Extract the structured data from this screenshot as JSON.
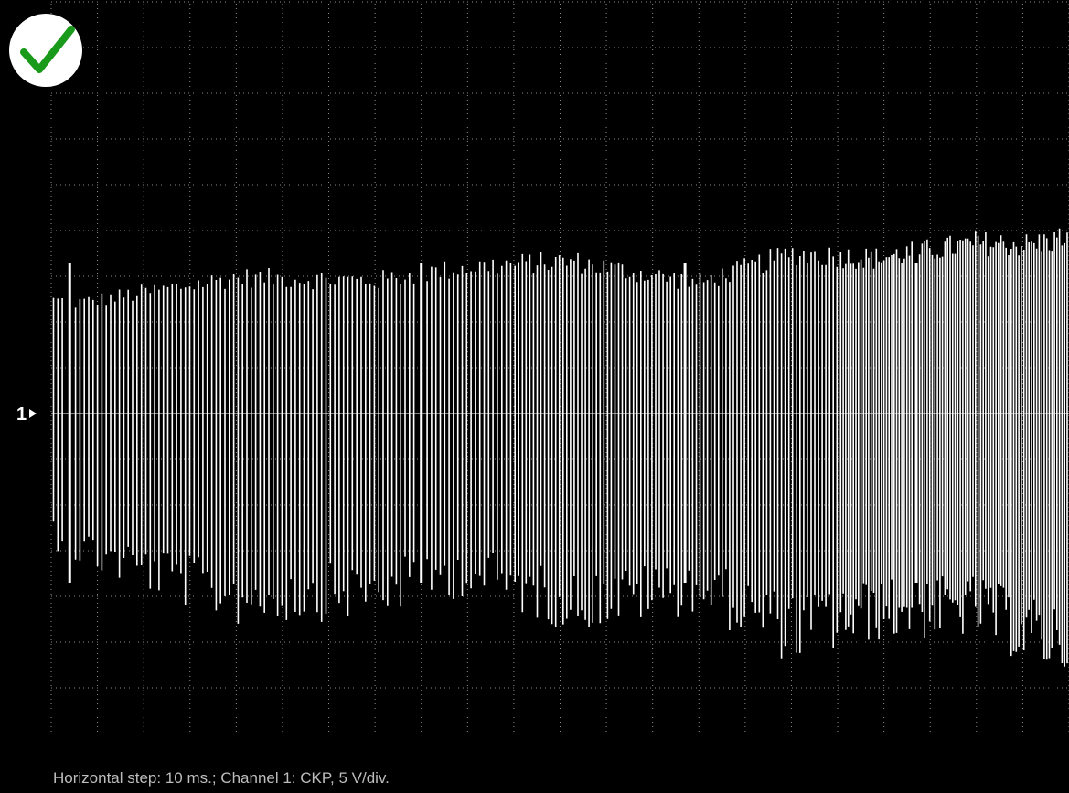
{
  "status": {
    "ok_icon": "check-icon",
    "ok_color": "#1a9a1a"
  },
  "footer_text": "Horizontal step: 10 ms.; Channel 1: CKP, 5 V/div.",
  "chart_data": {
    "type": "line",
    "title": "",
    "xlabel": "",
    "ylabel": "",
    "time_per_div_ms": 10,
    "volts_per_div": 5,
    "x_divisions": 22,
    "y_divisions": 14,
    "grid": true,
    "trace_color": "#ffffff",
    "grid_color": "#8c8c8c",
    "series": [
      {
        "channel_label": "1",
        "signal": "CKP",
        "envelope_ms": [
          0,
          7,
          40,
          70,
          90,
          112,
          140,
          160,
          178,
          200,
          212,
          220
        ],
        "upper_envelope_v": [
          13.3,
          13.0,
          16.0,
          15.6,
          17.2,
          17.9,
          15.3,
          18.8,
          18.2,
          20.0,
          19.8,
          20.8
        ],
        "lower_envelope_v": [
          -14.5,
          -17.2,
          -23.3,
          -22.5,
          -20.0,
          -24.0,
          -22.0,
          -27.5,
          -25.0,
          -24.5,
          -28.0,
          -28.5
        ],
        "gap_markers_ms": [
          4,
          80,
          137,
          187
        ]
      }
    ]
  }
}
